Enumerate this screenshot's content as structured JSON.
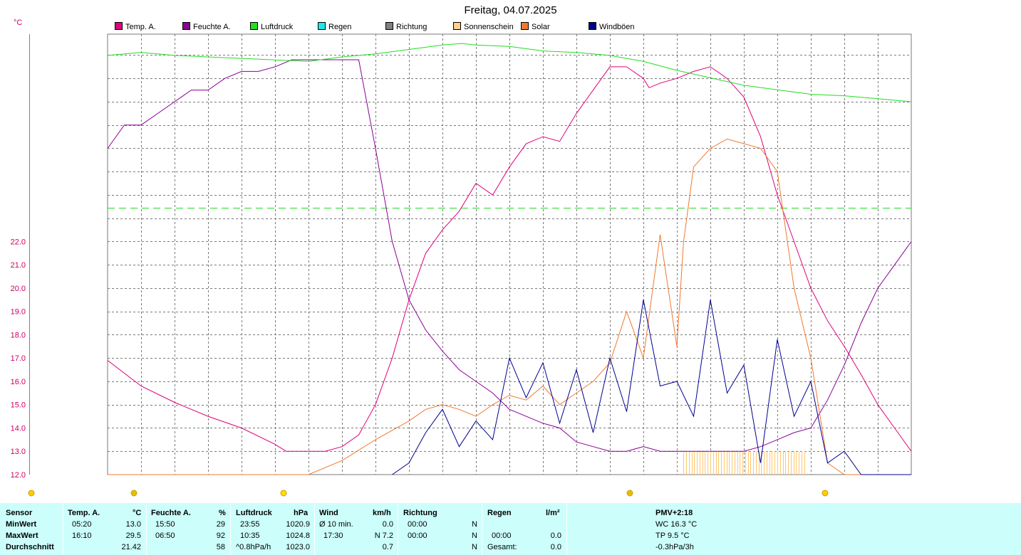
{
  "title": "Freitag, 04.07.2025",
  "y_unit": "°C",
  "legend": [
    {
      "label": "Temp. A.",
      "color": "#e0007a"
    },
    {
      "label": "Feuchte A.",
      "color": "#8a0094"
    },
    {
      "label": "Luftdruck",
      "color": "#22dd22"
    },
    {
      "label": "Regen",
      "color": "#22e6ee"
    },
    {
      "label": "Richtung",
      "color": "#808080"
    },
    {
      "label": "Sonnenschein",
      "color": "#ffd090"
    },
    {
      "label": "Solar",
      "color": "#f07830"
    },
    {
      "label": "Windböen",
      "color": "#000090"
    }
  ],
  "colors": {
    "grid": "#7a7a7a",
    "axis_label": "#cc0066",
    "table_bg": "#ccfffb"
  },
  "chart_data": {
    "type": "line",
    "x_range": [
      0,
      24
    ],
    "ylim": [
      12,
      30.9
    ],
    "y_ticks": [
      "12.0",
      "13.0",
      "14.0",
      "15.0",
      "16.0",
      "17.0",
      "18.0",
      "19.0",
      "20.0",
      "21.0",
      "22.0"
    ],
    "series": [
      {
        "name": "Temp. A.",
        "unit": "°C",
        "x": [
          0,
          1,
          2,
          3,
          4,
          5,
          5.33,
          6,
          6.5,
          7,
          7.5,
          8,
          8.5,
          9,
          9.5,
          10,
          10.5,
          11,
          11.5,
          12,
          12.5,
          13,
          13.5,
          14,
          14.5,
          15,
          15.5,
          16,
          16.17,
          16.5,
          17,
          17.5,
          18,
          18.5,
          19,
          19.5,
          20,
          20.5,
          21,
          21.5,
          22,
          22.5,
          23,
          23.5,
          24
        ],
        "y": [
          16.9,
          15.8,
          15.1,
          14.5,
          14.0,
          13.3,
          13.0,
          13.0,
          13.0,
          13.2,
          13.7,
          15.0,
          17.0,
          19.5,
          21.5,
          22.5,
          23.3,
          24.5,
          24.0,
          25.2,
          26.2,
          26.5,
          26.3,
          27.5,
          28.5,
          29.5,
          29.5,
          29.0,
          28.6,
          28.8,
          29.0,
          29.3,
          29.5,
          29.0,
          28.2,
          26.5,
          24.0,
          22.0,
          20.0,
          18.6,
          17.5,
          16.3,
          15.0,
          14.0,
          13.0
        ]
      },
      {
        "name": "Feuchte A.",
        "unit": "%",
        "x": [
          0,
          0.5,
          1,
          1.5,
          2,
          2.5,
          3,
          3.5,
          4,
          4.5,
          5,
          5.5,
          6,
          6.5,
          7,
          7.5,
          8,
          8.5,
          9,
          9.5,
          10,
          10.5,
          11,
          11.5,
          12,
          12.5,
          13,
          13.5,
          14,
          14.5,
          15,
          15.5,
          16,
          16.5,
          17,
          17.5,
          18,
          18.5,
          19,
          19.5,
          20,
          20.5,
          21,
          21.5,
          22,
          22.5,
          23,
          23.5,
          24
        ],
        "y": [
          26.0,
          27.0,
          27.0,
          27.5,
          28.0,
          28.5,
          28.5,
          29.0,
          29.3,
          29.3,
          29.5,
          29.8,
          29.8,
          29.8,
          29.8,
          29.8,
          26.0,
          22.0,
          19.5,
          18.2,
          17.3,
          16.5,
          16.0,
          15.5,
          14.8,
          14.5,
          14.2,
          14.0,
          13.4,
          13.2,
          13.0,
          13.0,
          13.2,
          13.0,
          13.0,
          13.0,
          13.0,
          13.0,
          13.0,
          13.2,
          13.5,
          13.8,
          14.0,
          15.2,
          16.7,
          18.5,
          20.0,
          21.0,
          22.0
        ]
      },
      {
        "name": "Luftdruck",
        "unit": "hPa",
        "x": [
          0,
          1,
          2,
          3,
          4,
          5,
          6,
          7,
          8,
          9,
          10,
          10.58,
          11,
          12,
          13,
          14,
          15,
          16,
          17,
          18,
          19,
          20,
          21,
          22,
          23,
          24
        ],
        "y": [
          1024.0,
          1024.2,
          1024.0,
          1023.9,
          1023.8,
          1023.7,
          1023.6,
          1023.9,
          1024.1,
          1024.4,
          1024.7,
          1024.8,
          1024.7,
          1024.6,
          1024.3,
          1024.2,
          1024.0,
          1023.6,
          1023.0,
          1022.5,
          1022.0,
          1021.7,
          1021.4,
          1021.3,
          1021.1,
          1020.9
        ]
      },
      {
        "name": "Solar",
        "unit": "W/m²",
        "x": [
          0,
          5.2,
          6,
          7,
          8,
          9,
          9.5,
          10,
          10.5,
          11,
          11.5,
          12,
          12.5,
          13,
          13.5,
          14,
          14.5,
          15,
          15.5,
          16,
          16.5,
          17,
          17.2,
          17.5,
          18,
          18.5,
          19,
          19.5,
          20,
          20.5,
          21,
          21.5,
          22,
          22.5,
          23,
          23.5,
          24
        ],
        "y": [
          12.0,
          12.0,
          12.0,
          12.6,
          13.5,
          14.3,
          14.8,
          15.0,
          14.8,
          14.5,
          15.0,
          15.4,
          15.2,
          15.8,
          15.0,
          15.5,
          16.0,
          16.8,
          19.0,
          17.0,
          22.3,
          17.5,
          22.0,
          25.2,
          26.0,
          26.4,
          26.2,
          26.0,
          25.0,
          20.0,
          17.0,
          12.5,
          12.0,
          12.0,
          12.0,
          12.0,
          12.0
        ]
      },
      {
        "name": "Windböen",
        "unit": "km/h",
        "x": [
          8.5,
          9,
          9.5,
          10,
          10.5,
          11,
          11.5,
          12,
          12.5,
          13,
          13.5,
          14,
          14.5,
          15,
          15.5,
          16,
          16.5,
          17,
          17.5,
          18,
          18.5,
          19,
          19.5,
          20,
          20.5,
          21,
          21.5,
          22,
          22.5,
          23,
          23.5,
          24
        ],
        "y": [
          12.0,
          12.5,
          13.8,
          14.8,
          13.2,
          14.3,
          13.5,
          17.0,
          15.3,
          16.8,
          14.2,
          16.5,
          13.8,
          17.0,
          14.7,
          19.5,
          15.8,
          16.0,
          14.5,
          19.5,
          15.5,
          16.7,
          12.5,
          17.8,
          14.5,
          16.0,
          12.5,
          13.0,
          12.0,
          12.0,
          12.0,
          12.0
        ]
      }
    ],
    "sunshine_bars": {
      "from_hour": 17.2,
      "to_hour": 20.8,
      "level": 13.0
    }
  },
  "table": {
    "headers": {
      "sensor": "Sensor",
      "temp": "Temp. A.",
      "temp_unit": "°C",
      "hum": "Feuchte A.",
      "hum_unit": "%",
      "press": "Luftdruck",
      "press_unit": "hPa",
      "wind": "Wind",
      "wind_unit": "km/h",
      "dir": "Richtung",
      "rain": "Regen",
      "rain_unit": "l/m²",
      "pmv": "PMV+2:18"
    },
    "rows": [
      {
        "label": "MinWert",
        "temp_t": "05:20",
        "temp_v": "13.0",
        "hum_t": "15:50",
        "hum_v": "29",
        "press_t": "23:55",
        "press_v": "1020.9",
        "wind_t": "Ø 10 min.",
        "wind_v": "0.0",
        "dir_t": "00:00",
        "dir_v": "N",
        "rain_t": "",
        "rain_v": "",
        "pmv": "WC 16.3 °C"
      },
      {
        "label": "MaxWert",
        "temp_t": "16:10",
        "temp_v": "29.5",
        "hum_t": "06:50",
        "hum_v": "92",
        "press_t": "10:35",
        "press_v": "1024.8",
        "wind_t": "17:30",
        "wind_v": "N 7.2",
        "dir_t": "00:00",
        "dir_v": "N",
        "rain_t": "00:00",
        "rain_v": "0.0",
        "pmv": "TP 9.5 °C"
      },
      {
        "label": "Durchschnitt",
        "temp_t": "",
        "temp_v": "21.42",
        "hum_t": "",
        "hum_v": "58",
        "press_t": "^0.8hPa/h",
        "press_v": "1023.0",
        "wind_t": "",
        "wind_v": "0.7",
        "dir_t": "",
        "dir_v": "N",
        "rain_t": "Gesamt:",
        "rain_v": "0.0",
        "pmv": "-0.3hPa/3h"
      }
    ]
  }
}
